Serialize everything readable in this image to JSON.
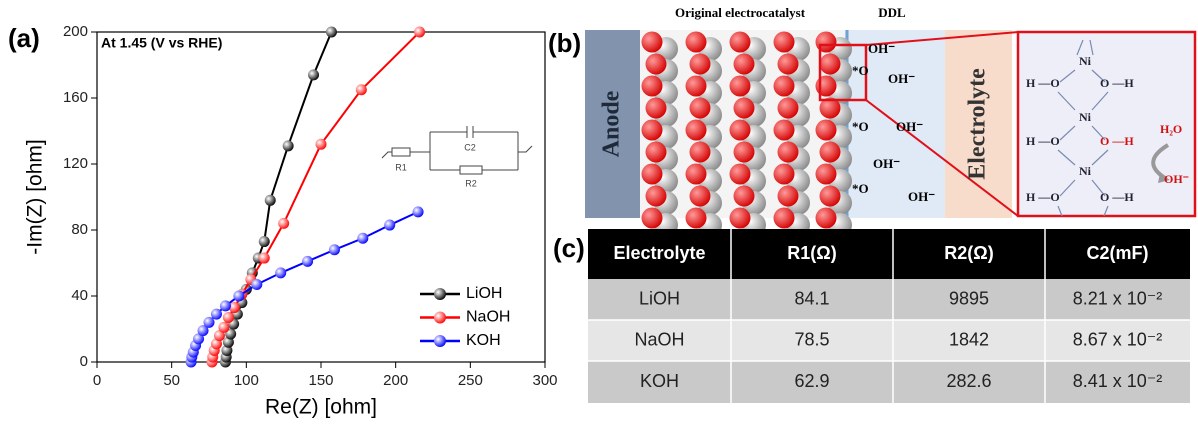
{
  "chart_data": {
    "type": "line",
    "label": "(a)",
    "annotation": "At 1.45 (V vs RHE)",
    "xlabel": "Re(Z) [ohm]",
    "ylabel": "-Im(Z) [ohm]",
    "xlim": [
      0,
      300
    ],
    "xticks": [
      0,
      50,
      100,
      150,
      200,
      250,
      300
    ],
    "ylim": [
      0,
      200
    ],
    "yticks": [
      0,
      40,
      80,
      120,
      160,
      200
    ],
    "grid": false,
    "legend": "lower right",
    "circuit_labels": [
      "R1",
      "C2",
      "R2"
    ],
    "series": [
      {
        "name": "LiOH",
        "color": "#000000",
        "x": [
          86,
          86.5,
          87,
          88,
          89.5,
          91.5,
          94,
          97,
          100,
          104,
          108,
          112,
          116,
          128,
          145,
          157
        ],
        "values": [
          0,
          3,
          7,
          12,
          17,
          23,
          29,
          36,
          44,
          54,
          63,
          73,
          98,
          131,
          174,
          200
        ]
      },
      {
        "name": "NaOH",
        "color": "#ff0000",
        "x": [
          77,
          77.5,
          78.5,
          80,
          82,
          85,
          88,
          92,
          97,
          103,
          112,
          125,
          150,
          177,
          216
        ],
        "values": [
          0,
          3,
          7,
          11,
          16,
          21,
          27,
          33,
          41,
          50,
          63,
          84,
          132,
          165,
          200
        ]
      },
      {
        "name": "KOH",
        "color": "#0000ff",
        "x": [
          63,
          63.5,
          64.5,
          66,
          68,
          71,
          75,
          80,
          86,
          95,
          107,
          123,
          141,
          159,
          178,
          196,
          215
        ],
        "values": [
          0,
          3,
          6,
          10,
          14,
          19,
          24,
          29,
          34,
          40,
          47,
          54,
          61,
          68,
          75,
          83,
          91
        ]
      }
    ]
  },
  "diagram": {
    "label": "(b)",
    "header": "Original electrocatalyst",
    "ddl": "DDL",
    "anode": "Anode",
    "electrolyte": "Electrolyte",
    "adsorbates": [
      "*O",
      "*O",
      "*O"
    ],
    "ions": [
      "OH⁻",
      "OH⁻",
      "OH⁻",
      "OH⁻",
      "OH⁻"
    ],
    "inset": {
      "metal": [
        "Ni",
        "Ni",
        "Ni"
      ],
      "left_bonds": [
        "H —O",
        "H —O",
        "H —O"
      ],
      "right_bonds": [
        "O —H",
        "O —H",
        "O —H"
      ],
      "water": "H₂O",
      "hydroxide": "OH⁻"
    }
  },
  "table": {
    "label": "(c)",
    "header": [
      "Electrolyte",
      "R1(Ω)",
      "R2(Ω)",
      "C2(mF)"
    ],
    "rows": [
      [
        "LiOH",
        84.1,
        9895,
        "8.21 x 10⁻²"
      ],
      [
        "NaOH",
        78.5,
        1842,
        "8.67 x 10⁻²"
      ],
      [
        "KOH",
        62.9,
        282.6,
        "8.41 x 10⁻²"
      ]
    ]
  }
}
